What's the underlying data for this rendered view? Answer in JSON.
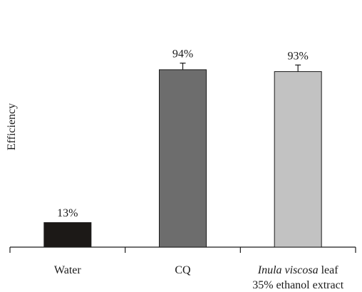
{
  "chart_data": {
    "type": "bar",
    "title": "",
    "xlabel": "",
    "ylabel": "Efficiency",
    "ylim": [
      0,
      100
    ],
    "grid": false,
    "legend": "none",
    "categories": [
      {
        "label": "Water",
        "italic_part": "",
        "rest": "",
        "line2": ""
      },
      {
        "label": "CQ",
        "italic_part": "",
        "rest": "",
        "line2": ""
      },
      {
        "label": "",
        "italic_part": "Inula viscosa",
        "rest": " leaf",
        "line2": "35% ethanol extract"
      }
    ],
    "values": [
      13,
      94,
      93
    ],
    "errors": [
      0.3,
      3.5,
      3.5
    ],
    "value_labels": [
      "13%",
      "94%",
      "93%"
    ],
    "colors": [
      "#1c1917",
      "#6d6d6d",
      "#c2c2c2"
    ],
    "axis_color": "#1a1a1a"
  }
}
